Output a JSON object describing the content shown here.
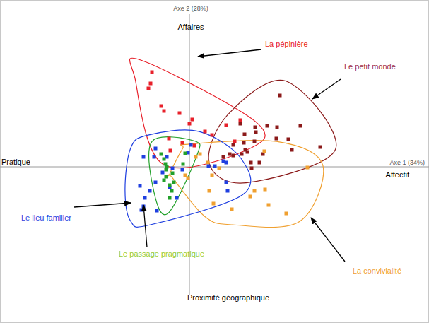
{
  "chart_data": {
    "type": "scatter",
    "x_label": "Axe 1 (34%)",
    "y_label": "Axe 2 (28%)",
    "pole_labels": {
      "top": "Affaires",
      "bottom": "Proximité géographique",
      "left": "Pratique",
      "right": "Affectif"
    },
    "xlim": [
      -2.68,
      3.39
    ],
    "ylim": [
      -2.21,
      2.36
    ],
    "xticks": [
      0
    ],
    "yticks": [
      0
    ],
    "tick_labels": false,
    "grid": true,
    "marker": "square",
    "series": [
      {
        "name": "La pépinière",
        "color": "#e8202a",
        "x": [
          -0.53,
          -0.55,
          -0.58,
          -0.4,
          -0.36,
          -0.14,
          0.0,
          -0.29,
          -0.27,
          -0.1,
          0.22,
          0.32,
          0.07,
          0.52,
          0.64,
          0.72,
          0.04
        ],
        "values": [
          1.34,
          1.18,
          1.11,
          0.86,
          0.79,
          0.76,
          0.61,
          0.4,
          0.23,
          0.34,
          0.5,
          0.45,
          0.3,
          0.59,
          0.36,
          0.66,
          0.67
        ]
      },
      {
        "name": "Le petit monde",
        "color": "#8b1a1a",
        "x": [
          0.72,
          0.78,
          0.93,
          0.94,
          1.1,
          1.23,
          1.24,
          1.4,
          1.57,
          0.77,
          0.79,
          0.74,
          0.62,
          0.87,
          0.82,
          0.48,
          0.57,
          0.88,
          1.45,
          1.85,
          0.92,
          0.62,
          1.04,
          0.99,
          1.28
        ],
        "values": [
          0.61,
          0.46,
          0.56,
          0.49,
          0.58,
          0.4,
          0.56,
          0.39,
          0.58,
          0.34,
          0.24,
          0.18,
          0.31,
          0.06,
          0.21,
          0.14,
          0.18,
          -0.02,
          0.24,
          0.28,
          0.36,
          0.16,
          0.18,
          0.06,
          1.01
        ]
      },
      {
        "name": "La convivialité",
        "color": "#f0a030",
        "x": [
          0.26,
          0.32,
          -0.06,
          -0.02,
          0.92,
          1.07,
          0.86,
          1.12,
          0.6,
          1.37,
          0.34,
          0.28,
          1.06,
          1.67,
          0.42,
          0.15,
          0.09
        ],
        "values": [
          0.06,
          -0.12,
          -0.12,
          -0.16,
          -0.34,
          -0.32,
          -0.42,
          -0.54,
          -0.6,
          -0.66,
          -0.52,
          -0.34,
          0.22,
          -0.01,
          -0.02,
          0.18,
          0.14
        ]
      },
      {
        "name": "Le lieu familier",
        "color": "#1f3fe0",
        "x": [
          -0.65,
          -0.5,
          -0.48,
          -0.32,
          0.02,
          -0.02,
          -0.24,
          -0.1,
          -0.38,
          -0.48,
          -0.56,
          -0.63,
          -0.65,
          -0.68,
          -0.46,
          -0.28,
          -0.18,
          -0.7,
          0.52,
          0.54,
          0.27,
          0.52,
          0.36,
          0.48
        ],
        "values": [
          0.14,
          0.14,
          0.26,
          0.14,
          0.31,
          0.2,
          -0.02,
          -0.04,
          -0.08,
          -0.22,
          -0.34,
          -0.44,
          -0.56,
          -0.61,
          -0.62,
          -0.29,
          -0.44,
          -0.27,
          -0.22,
          -0.34,
          0.01,
          0.06,
          0.01,
          0.08
        ]
      },
      {
        "name": "Le passage pragmatique",
        "color": "#22a02a",
        "x": [
          -0.4,
          -0.36,
          -0.34,
          -0.33,
          -0.33,
          -0.24,
          -0.36,
          -0.22,
          -0.25,
          -0.28,
          -0.06,
          -0.09,
          -0.28,
          -0.32
        ],
        "values": [
          0.18,
          0.11,
          0.04,
          -0.04,
          -0.14,
          -0.09,
          -0.19,
          -0.22,
          -0.34,
          -0.26,
          0.19,
          0.04,
          -0.44,
          0.0
        ]
      }
    ]
  }
}
